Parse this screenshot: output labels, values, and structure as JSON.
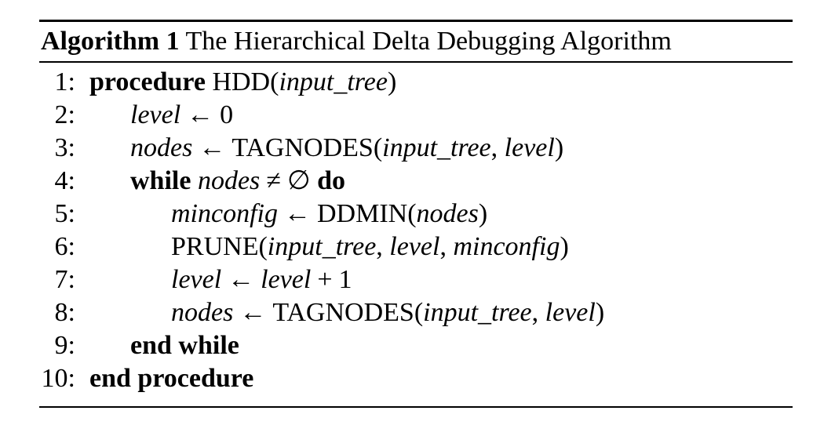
{
  "algorithm": {
    "caption_label": "Algorithm 1",
    "caption_title": "The Hierarchical Delta Debugging Algorithm",
    "lines": [
      {
        "num": "1:",
        "parts": [
          "procedure",
          "HDD",
          "(",
          "input_tree",
          ")"
        ]
      },
      {
        "num": "2:",
        "parts": [
          "level",
          "←",
          "0"
        ]
      },
      {
        "num": "3:",
        "parts": [
          "nodes",
          "←",
          "TAGNODES",
          "(",
          "input_tree",
          ",",
          "level",
          ")"
        ]
      },
      {
        "num": "4:",
        "parts": [
          "while",
          "nodes",
          "≠",
          "∅",
          "do"
        ]
      },
      {
        "num": "5:",
        "parts": [
          "minconfig",
          "←",
          "DDMIN",
          "(",
          "nodes",
          ")"
        ]
      },
      {
        "num": "6:",
        "parts": [
          "PRUNE",
          "(",
          "input_tree",
          ",",
          "level",
          ",",
          "minconfig",
          ")"
        ]
      },
      {
        "num": "7:",
        "parts": [
          "level",
          "←",
          "level",
          "+",
          "1"
        ]
      },
      {
        "num": "8:",
        "parts": [
          "nodes",
          "←",
          "TAGNODES",
          "(",
          "input_tree",
          ",",
          "level",
          ")"
        ]
      },
      {
        "num": "9:",
        "parts": [
          "end while"
        ]
      },
      {
        "num": "10:",
        "parts": [
          "end procedure"
        ]
      }
    ]
  }
}
